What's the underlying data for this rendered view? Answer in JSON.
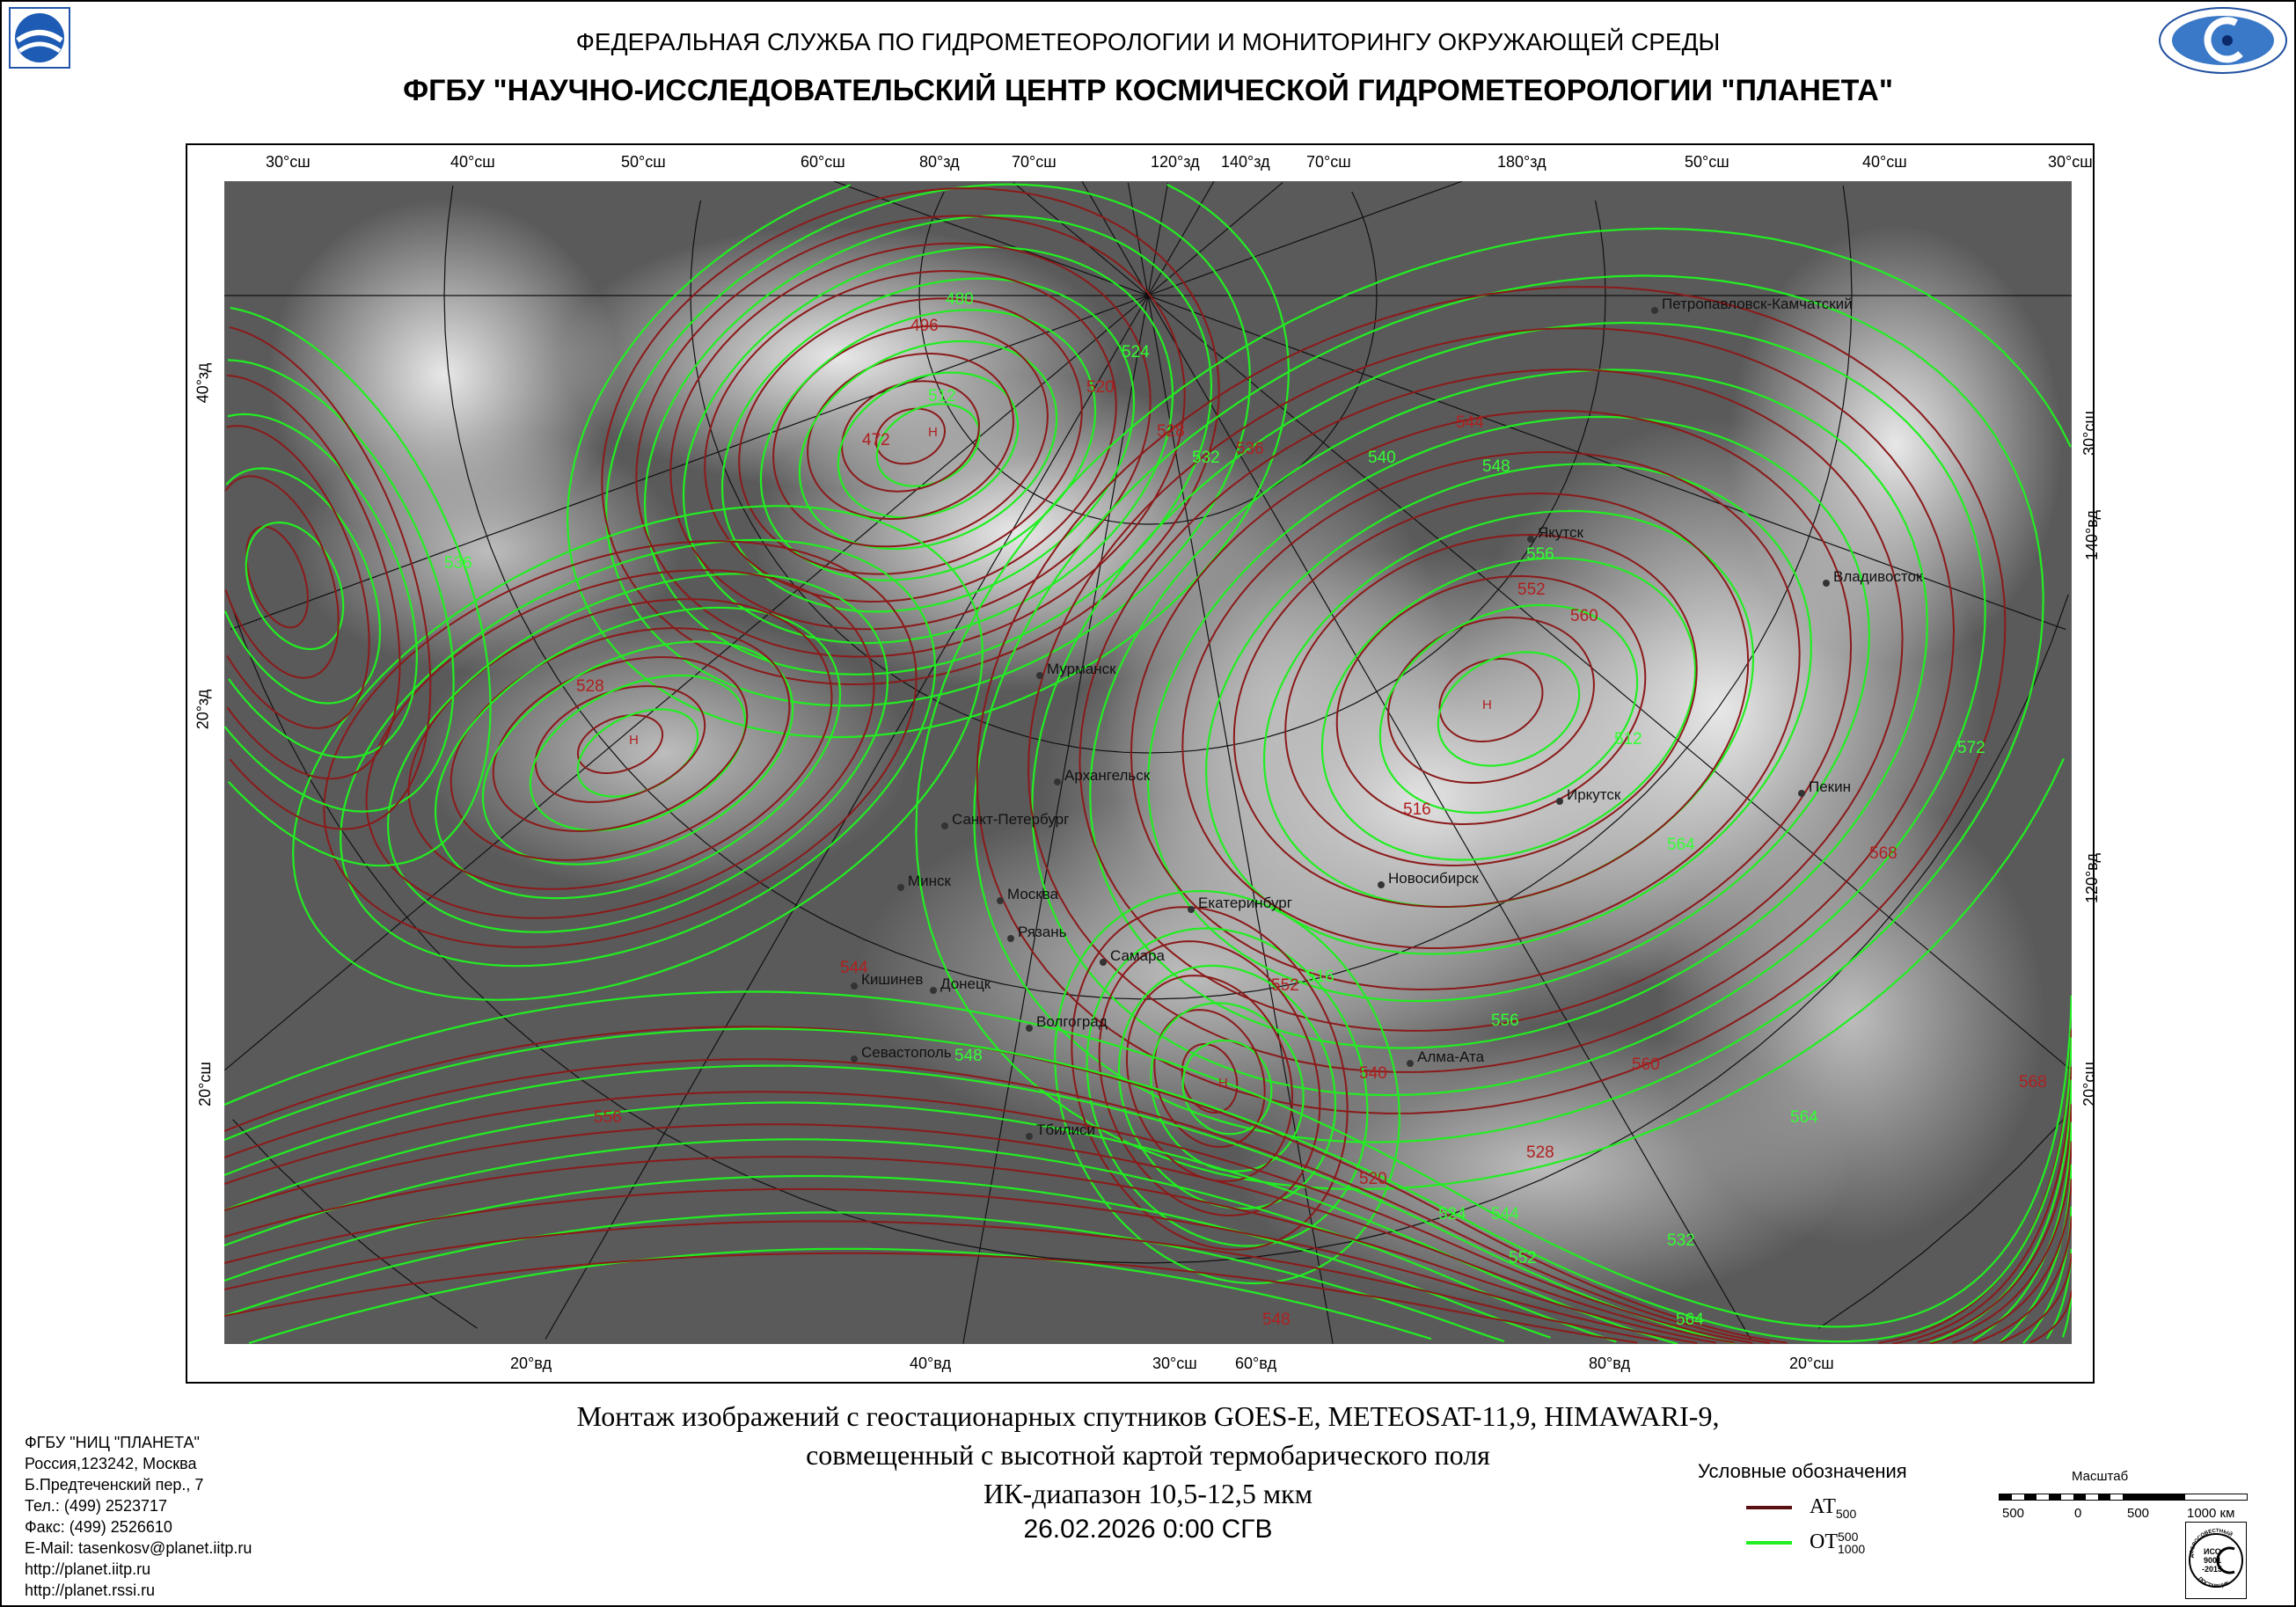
{
  "header": {
    "line1": "ФЕДЕРАЛЬНАЯ СЛУЖБА ПО ГИДРОМЕТЕОРОЛОГИИ И МОНИТОРИНГУ ОКРУЖАЮЩЕЙ СРЕДЫ",
    "line2": "ФГБУ \"НАУЧНО-ИССЛЕДОВАТЕЛЬСКИЙ ЦЕНТР КОСМИЧЕСКОЙ ГИДРОМЕТЕОРОЛОГИИ \"ПЛАНЕТА\"",
    "logo_left": "roshydromet-logo",
    "logo_right": "planeta-logo"
  },
  "map": {
    "top_labels": [
      "30°сш",
      "40°сш",
      "50°сш",
      "60°сш",
      "80°зд",
      "70°сш",
      "120°зд",
      "140°зд",
      "70°сш",
      "180°зд",
      "50°сш",
      "40°сш",
      "30°сш"
    ],
    "bottom_labels": [
      "20°вд",
      "40°вд",
      "30°сш",
      "60°вд",
      "80°вд",
      "20°сш"
    ],
    "left_labels": [
      "40°зд",
      "20°зд",
      "20°сш"
    ],
    "right_labels": [
      "30°сш",
      "140°вд",
      "120°вд",
      "20°сш"
    ],
    "cities": [
      "Мурманск",
      "Архангельск",
      "Санкт-Петербург",
      "Минск",
      "Москва",
      "Рязань",
      "Самара",
      "Екатеринбург",
      "Новосибирск",
      "Иркутск",
      "Якутск",
      "Петропавловск-Камчатский",
      "Владивосток",
      "Пекин",
      "Алма-Ата",
      "Кишинев",
      "Донецк",
      "Волгоград",
      "Севастополь",
      "Тбилиси"
    ],
    "contour_labels": [
      "472",
      "480",
      "496",
      "512",
      "520",
      "524",
      "528",
      "532",
      "536",
      "540",
      "544",
      "548",
      "552",
      "556",
      "560",
      "564",
      "568",
      "572",
      "516",
      "512",
      "528",
      "536",
      "544",
      "548",
      "552",
      "556",
      "560",
      "564",
      "568",
      "516",
      "520",
      "524",
      "528",
      "532",
      "540",
      "544",
      "548",
      "552",
      "556",
      "564"
    ],
    "center_marks": [
      "Н",
      "Н",
      "Н",
      "Н"
    ],
    "at_color": "#8b1a1a",
    "ot_color": "#22ee22"
  },
  "caption": {
    "line1": "Монтаж изображений с геостационарных спутников GOES-E, METEOSAT-11,9, HIMAWARI-9,",
    "line2": "совмещенный с высотной картой термобарического поля",
    "line3": "ИК-диапазон 10,5-12,5 мкм",
    "date": "26.02.2026  0:00 СГВ"
  },
  "contacts": [
    "ФГБУ \"НИЦ \"ПЛАНЕТА\"",
    "Россия,123242, Москва",
    "Б.Предтеченский пер., 7",
    "Тел.:  (499) 2523717",
    "Факс: (499) 2526610",
    "E-Mail: tasenkosv@planet.iitp.ru",
    "http://planet.iitp.ru",
    "http://planet.rssi.ru"
  ],
  "legend": {
    "title": "Условные обозначения",
    "at": "АТ",
    "at_sub": "500",
    "ot": "ОТ",
    "ot_sup": "500",
    "ot_sub": "1000"
  },
  "scale": {
    "title": "Масштаб",
    "ticks": [
      "500",
      "0",
      "500",
      "1000 км"
    ]
  },
  "iso_badge": {
    "top": "ДОБРОСОВЕСТНЫЙ",
    "middle": "ИСО 9001 -2015",
    "bottom": "ПОСТАВЩИК"
  }
}
